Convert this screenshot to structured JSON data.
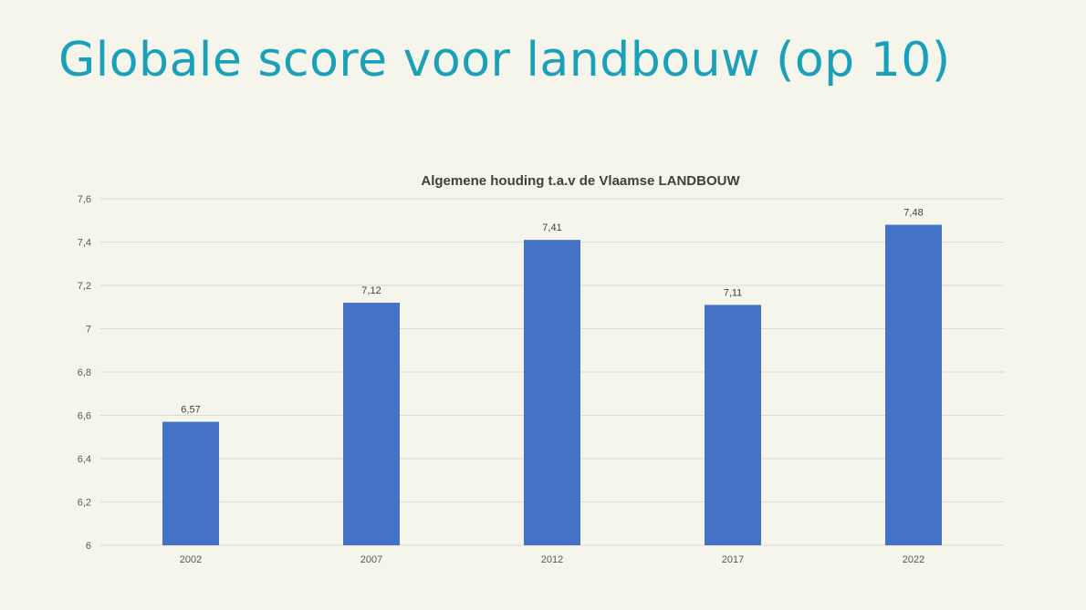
{
  "slide": {
    "title": "Globale score voor landbouw (op 10)"
  },
  "chart_data": {
    "type": "bar",
    "title": "Algemene houding t.a.v de Vlaamse LANDBOUW",
    "categories": [
      "2002",
      "2007",
      "2012",
      "2017",
      "2022"
    ],
    "values": [
      6.57,
      7.12,
      7.41,
      7.11,
      7.48
    ],
    "value_labels": [
      "6,57",
      "7,12",
      "7,41",
      "7,11",
      "7,48"
    ],
    "ylim": [
      6,
      7.6
    ],
    "yticks": [
      6,
      6.2,
      6.4,
      6.6,
      6.8,
      7,
      7.2,
      7.4,
      7.6
    ],
    "ytick_labels": [
      "6",
      "6,2",
      "6,4",
      "6,6",
      "6,8",
      "7",
      "7,2",
      "7,4",
      "7,6"
    ],
    "grid": true,
    "legend": "none",
    "bar_color": "#4472c4"
  }
}
